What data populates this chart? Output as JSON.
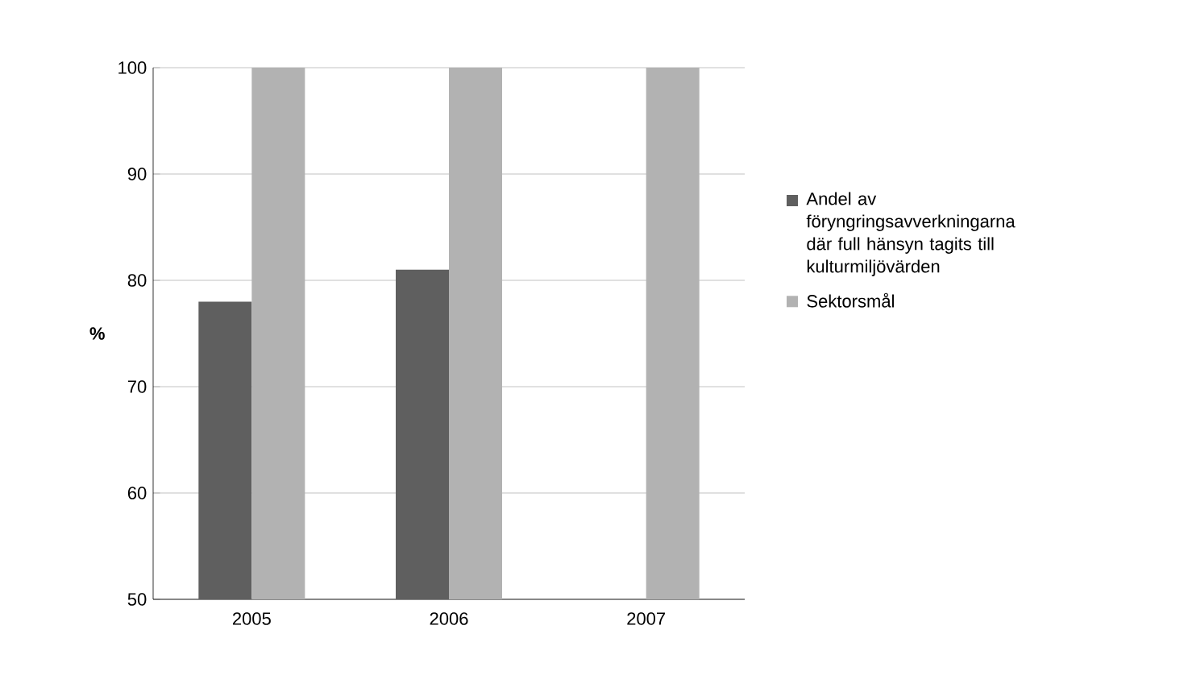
{
  "chart_data": {
    "type": "bar",
    "ylabel": "%",
    "categories": [
      "2005",
      "2006",
      "2007"
    ],
    "series": [
      {
        "name": "Andel av föryngringsavverkningarna där full hänsyn tagits till kulturmiljövärden",
        "color": "#5f5f5f",
        "values": [
          78,
          81,
          null
        ]
      },
      {
        "name": "Sektorsmål",
        "color": "#b2b2b2",
        "values": [
          100,
          100,
          100
        ]
      }
    ],
    "ylim": [
      50,
      100
    ],
    "yticks": [
      50,
      60,
      70,
      80,
      90,
      100
    ],
    "grid": "y",
    "legend": "right"
  }
}
